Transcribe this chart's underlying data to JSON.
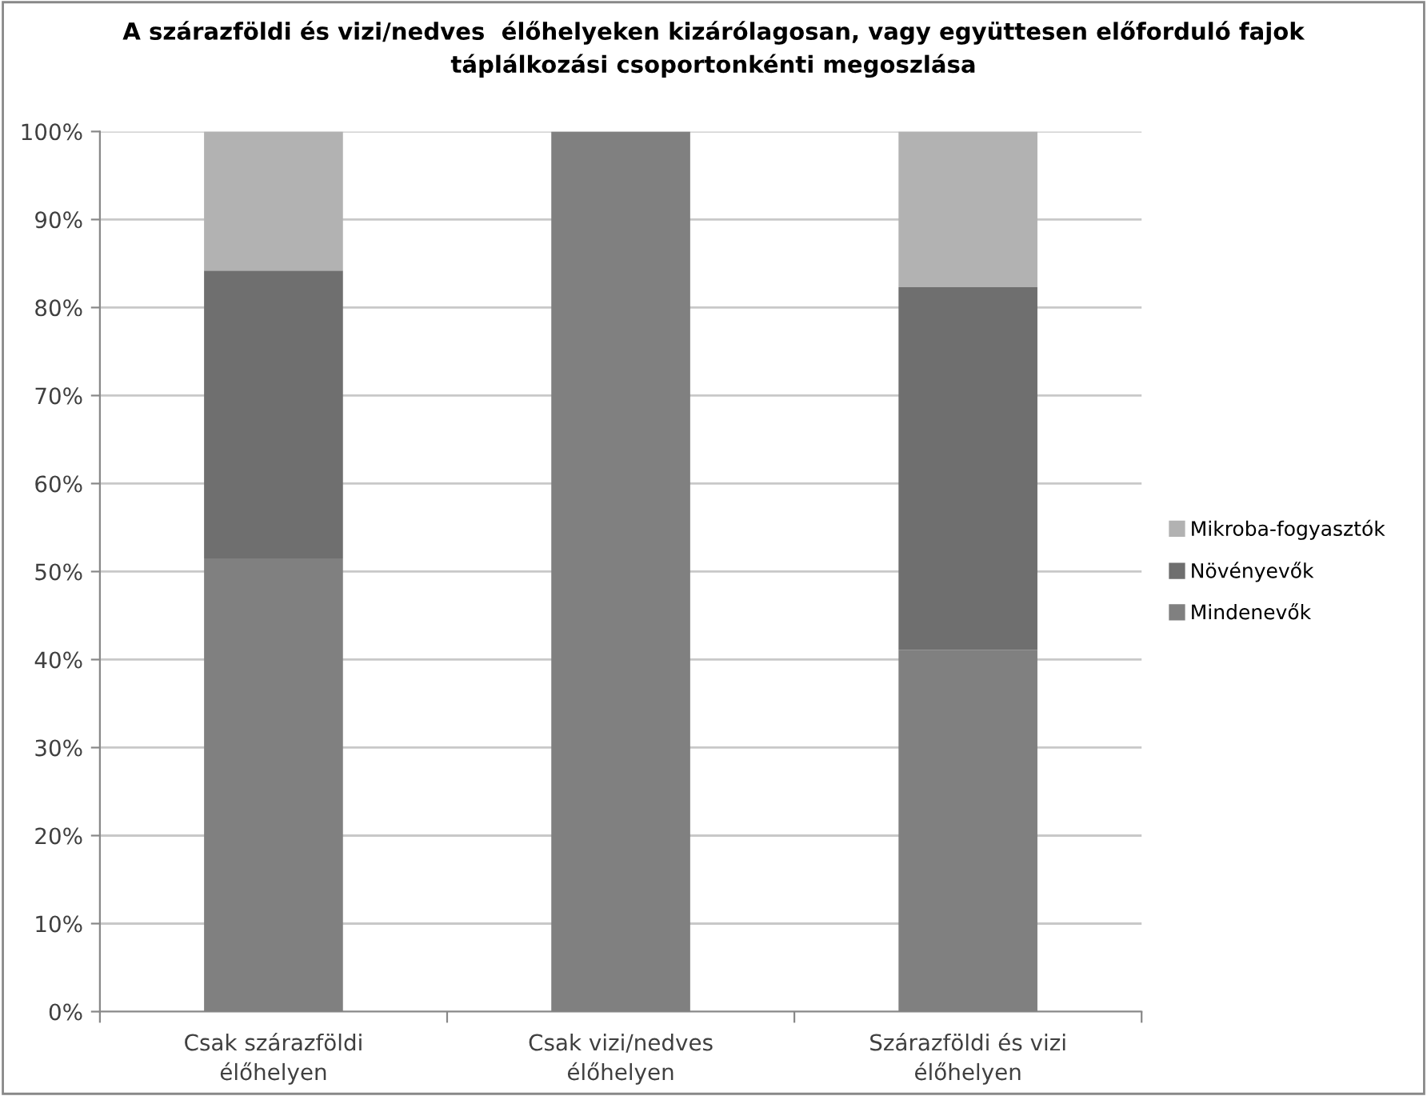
{
  "chart_data": {
    "type": "bar",
    "stacked": true,
    "title": "A szárazföldi és vizi/nedves  élőhelyeken kizárólagosan, vagy együttesen előforduló fajok\ntáplálkozási csoportonkénti megoszlása",
    "categories": [
      "Csak szárazföldi\nélőhelyen",
      "Csak vizi/nedves\nélőhelyen",
      "Szárazföldi és vizi\nélőhelyen"
    ],
    "series": [
      {
        "name": "Mindenevők",
        "color": "#808080",
        "values": [
          51.5,
          100,
          41.1
        ]
      },
      {
        "name": "Növényevők",
        "color": "#6f6f6f",
        "values": [
          32.7,
          0,
          41.2
        ]
      },
      {
        "name": "Mikroba-fogyasztók",
        "color": "#b2b2b2",
        "values": [
          15.8,
          0,
          17.7
        ]
      }
    ],
    "ylim": [
      0,
      100
    ],
    "yticks": [
      {
        "value": 0,
        "label": "0%"
      },
      {
        "value": 10,
        "label": "10%"
      },
      {
        "value": 20,
        "label": "20%"
      },
      {
        "value": 30,
        "label": "30%"
      },
      {
        "value": 40,
        "label": "40%"
      },
      {
        "value": 50,
        "label": "50%"
      },
      {
        "value": 60,
        "label": "60%"
      },
      {
        "value": 70,
        "label": "70%"
      },
      {
        "value": 80,
        "label": "80%"
      },
      {
        "value": 90,
        "label": "90%"
      },
      {
        "value": 100,
        "label": "100%"
      }
    ],
    "grid": "y",
    "legend": "right"
  }
}
